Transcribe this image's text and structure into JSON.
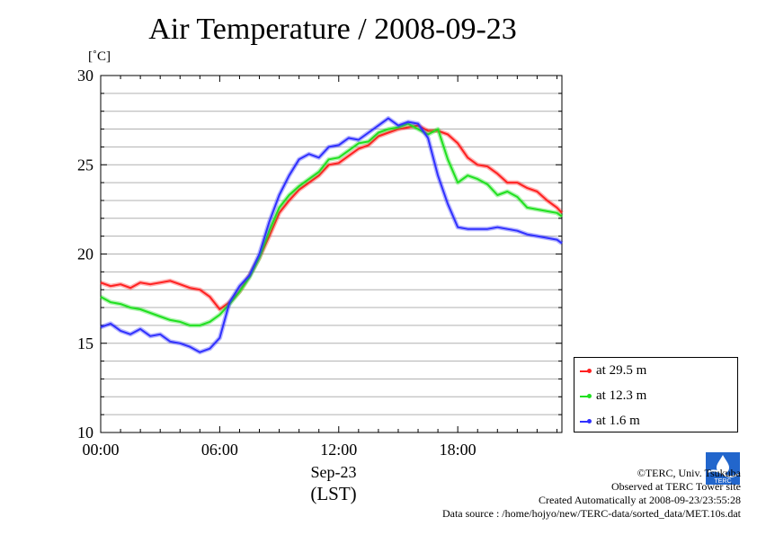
{
  "chart_data": {
    "type": "line",
    "title": "Air Temperature / 2008-09-23",
    "unit_label": "[˚C]",
    "xlabel_date": "Sep-23",
    "xlabel_tz": "(LST)",
    "x_ticks": [
      "00:00",
      "06:00",
      "12:00",
      "18:00"
    ],
    "x_tick_hours": [
      0,
      6,
      12,
      18
    ],
    "xlim_hours": [
      0,
      23.25
    ],
    "y_ticks": [
      "10",
      "15",
      "20",
      "25",
      "30"
    ],
    "y_tick_values": [
      10,
      15,
      20,
      25,
      30
    ],
    "ylim": [
      10,
      30
    ],
    "grid": "horizontal every 1 °C",
    "legend_position": "right-bottom",
    "series": [
      {
        "name": "at 29.5 m",
        "color": "#ff2020",
        "x_hours": [
          0,
          0.5,
          1,
          1.5,
          2,
          2.5,
          3,
          3.5,
          4,
          4.5,
          5,
          5.5,
          6,
          6.5,
          7,
          7.5,
          8,
          8.5,
          9,
          9.5,
          10,
          10.5,
          11,
          11.5,
          12,
          12.5,
          13,
          13.5,
          14,
          14.5,
          15,
          15.5,
          16,
          16.5,
          17,
          17.5,
          18,
          18.5,
          19,
          19.5,
          20,
          20.5,
          21,
          21.5,
          22,
          22.5,
          23,
          23.25
        ],
        "values": [
          18.4,
          18.2,
          18.3,
          18.1,
          18.4,
          18.3,
          18.4,
          18.5,
          18.3,
          18.1,
          18.0,
          17.6,
          16.9,
          17.3,
          17.9,
          18.8,
          19.8,
          21.0,
          22.3,
          23.0,
          23.6,
          24.0,
          24.4,
          25.0,
          25.1,
          25.5,
          25.9,
          26.1,
          26.6,
          26.8,
          27.0,
          27.1,
          27.2,
          26.9,
          26.9,
          26.7,
          26.2,
          25.4,
          25.0,
          24.9,
          24.5,
          24.0,
          24.0,
          23.7,
          23.5,
          23.0,
          22.6,
          22.3
        ]
      },
      {
        "name": "at 12.3 m",
        "color": "#20e020",
        "x_hours": [
          0,
          0.5,
          1,
          1.5,
          2,
          2.5,
          3,
          3.5,
          4,
          4.5,
          5,
          5.5,
          6,
          6.5,
          7,
          7.5,
          8,
          8.5,
          9,
          9.5,
          10,
          10.5,
          11,
          11.5,
          12,
          12.5,
          13,
          13.5,
          14,
          14.5,
          15,
          15.5,
          16,
          16.5,
          17,
          17.5,
          18,
          18.5,
          19,
          19.5,
          20,
          20.5,
          21,
          21.5,
          22,
          22.5,
          23,
          23.25
        ],
        "values": [
          17.6,
          17.3,
          17.2,
          17.0,
          16.9,
          16.7,
          16.5,
          16.3,
          16.2,
          16.0,
          16.0,
          16.2,
          16.6,
          17.2,
          17.9,
          18.7,
          19.8,
          21.3,
          22.6,
          23.3,
          23.8,
          24.2,
          24.6,
          25.3,
          25.4,
          25.8,
          26.2,
          26.3,
          26.8,
          27.0,
          27.1,
          27.3,
          27.0,
          26.7,
          27.0,
          25.3,
          24.0,
          24.4,
          24.2,
          23.9,
          23.3,
          23.5,
          23.2,
          22.6,
          22.5,
          22.4,
          22.3,
          22.1
        ]
      },
      {
        "name": "at 1.6 m",
        "color": "#3030ff",
        "x_hours": [
          0,
          0.5,
          1,
          1.5,
          2,
          2.5,
          3,
          3.5,
          4,
          4.5,
          5,
          5.5,
          6,
          6.5,
          7,
          7.5,
          8,
          8.5,
          9,
          9.5,
          10,
          10.5,
          11,
          11.5,
          12,
          12.5,
          13,
          13.5,
          14,
          14.5,
          15,
          15.5,
          16,
          16.5,
          17,
          17.5,
          18,
          18.5,
          19,
          19.5,
          20,
          20.5,
          21,
          21.5,
          22,
          22.5,
          23,
          23.25
        ],
        "values": [
          15.9,
          16.1,
          15.7,
          15.5,
          15.8,
          15.4,
          15.5,
          15.1,
          15.0,
          14.8,
          14.5,
          14.7,
          15.3,
          17.3,
          18.2,
          18.8,
          20.0,
          21.8,
          23.3,
          24.4,
          25.3,
          25.6,
          25.4,
          26.0,
          26.1,
          26.5,
          26.4,
          26.8,
          27.2,
          27.6,
          27.2,
          27.4,
          27.3,
          26.5,
          24.4,
          22.8,
          21.5,
          21.4,
          21.4,
          21.4,
          21.5,
          21.4,
          21.3,
          21.1,
          21.0,
          20.9,
          20.8,
          20.6
        ]
      }
    ]
  },
  "credits": {
    "copyright": "©TERC, Univ. Tsukuba",
    "observed": "Observed at TERC Tower site",
    "created": "Created Automatically at 2008-09-23/23:55:28",
    "source": "Data source : /home/hojyo/new/TERC-data/sorted_data/MET.10s.dat"
  },
  "logo_text": "TERC"
}
